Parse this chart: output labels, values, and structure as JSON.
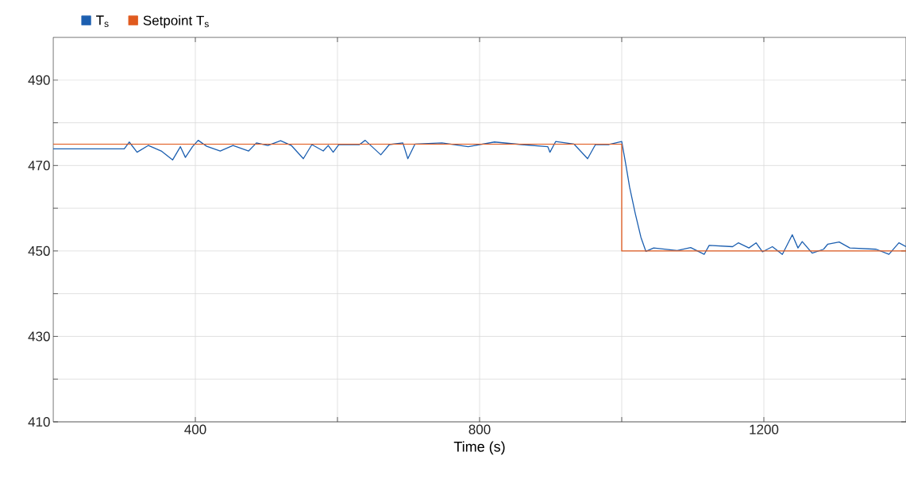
{
  "chart_data": {
    "type": "line",
    "xlabel": "Time (s)",
    "xlim": [
      200,
      1400
    ],
    "ylim": [
      410,
      500
    ],
    "xticks": [
      400,
      {
        "value": 600,
        "label": null
      },
      800,
      {
        "value": 1000,
        "label": null
      },
      1200
    ],
    "yticks": [
      410,
      {
        "value": 420,
        "label": null
      },
      430,
      {
        "value": 440,
        "label": null
      },
      450,
      {
        "value": 460,
        "label": null
      },
      470,
      {
        "value": 480,
        "label": null
      },
      490
    ],
    "grid": true,
    "legend": "top left",
    "marker": "none",
    "line_style": "solid",
    "series": [
      {
        "name": "T$_{s}$",
        "color": "#1c5fb0",
        "x": [
          200,
          300,
          307,
          318,
          334,
          352,
          368,
          379,
          386,
          396,
          404,
          416,
          435,
          453,
          475,
          486,
          502,
          520,
          535,
          552,
          564,
          580,
          587,
          594,
          602,
          631,
          639,
          661,
          673,
          692,
          699,
          709,
          747,
          784,
          821,
          859,
          896,
          899,
          907,
          933,
          952,
          963,
          982,
          1000,
          1006,
          1011,
          1019,
          1027,
          1034,
          1045,
          1078,
          1097,
          1116,
          1123,
          1156,
          1164,
          1179,
          1189,
          1198,
          1212,
          1226,
          1240,
          1248,
          1254,
          1268,
          1284,
          1290,
          1306,
          1321,
          1358,
          1376,
          1390,
          1400
        ],
        "values": [
          473.9,
          473.9,
          475.5,
          473.1,
          474.7,
          473.4,
          471.3,
          474.4,
          471.9,
          474.4,
          475.9,
          474.5,
          473.4,
          474.7,
          473.4,
          475.3,
          474.7,
          475.8,
          474.7,
          471.6,
          474.9,
          473.4,
          474.7,
          473.1,
          474.9,
          474.9,
          475.9,
          472.5,
          474.9,
          475.3,
          471.6,
          475.0,
          475.3,
          474.4,
          475.5,
          474.9,
          474.4,
          473.1,
          475.6,
          475.0,
          471.6,
          474.9,
          474.9,
          475.6,
          470,
          465,
          458.8,
          453.2,
          449.9,
          450.7,
          450.1,
          450.8,
          449.2,
          451.3,
          451.0,
          451.9,
          450.7,
          451.9,
          449.8,
          451.0,
          449.2,
          453.8,
          450.7,
          452.2,
          449.5,
          450.4,
          451.6,
          452.1,
          450.7,
          450.4,
          449.2,
          451.9,
          451.0
        ]
      },
      {
        "name": "Setpoint T$_{s}$",
        "color": "#e05a1e",
        "x": [
          200,
          1000,
          1000,
          1400
        ],
        "values": [
          475,
          475,
          450,
          450
        ]
      }
    ]
  }
}
